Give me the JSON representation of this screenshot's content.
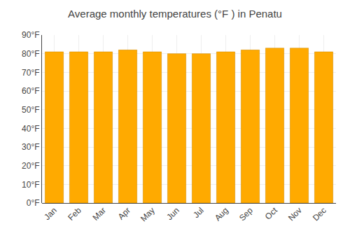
{
  "chart_data": {
    "type": "bar",
    "title": "Average monthly temperatures (°F ) in Penatu",
    "categories": [
      "Jan",
      "Feb",
      "Mar",
      "Apr",
      "May",
      "Jun",
      "Jul",
      "Aug",
      "Sep",
      "Oct",
      "Nov",
      "Dec"
    ],
    "values": [
      81,
      81,
      81,
      82,
      81,
      80,
      80,
      81,
      82,
      83,
      83,
      81
    ],
    "color": "#FFAA00",
    "ylim": [
      0,
      90
    ],
    "yticks": [
      {
        "value": 0,
        "label": "0°F"
      },
      {
        "value": 10,
        "label": "10°F"
      },
      {
        "value": 20,
        "label": "20°F"
      },
      {
        "value": 30,
        "label": "30°F"
      },
      {
        "value": 40,
        "label": "40°F"
      },
      {
        "value": 50,
        "label": "50°F"
      },
      {
        "value": 60,
        "label": "60°F"
      },
      {
        "value": 70,
        "label": "70°F"
      },
      {
        "value": 80,
        "label": "80°F"
      },
      {
        "value": 90,
        "label": "90°F"
      }
    ],
    "grid": true
  }
}
